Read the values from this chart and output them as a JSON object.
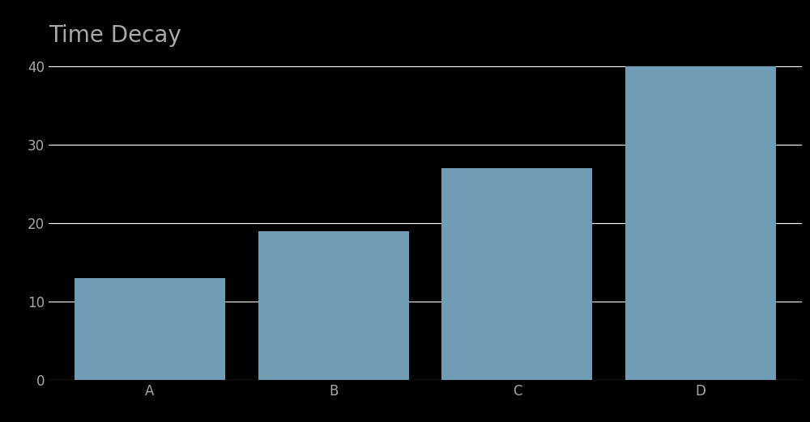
{
  "title": "Time Decay",
  "categories": [
    "A",
    "B",
    "C",
    "D"
  ],
  "values": [
    13,
    19,
    27,
    40
  ],
  "bar_color": "#6e9db5",
  "background_color": "#000000",
  "text_color": "#aaaaaa",
  "grid_color": "#ffffff",
  "ylim": [
    0,
    42
  ],
  "yticks": [
    0,
    10,
    20,
    30,
    40
  ],
  "title_fontsize": 20,
  "tick_fontsize": 12,
  "bar_width": 0.82,
  "figsize": [
    10.0,
    5.22
  ],
  "dpi": 100
}
